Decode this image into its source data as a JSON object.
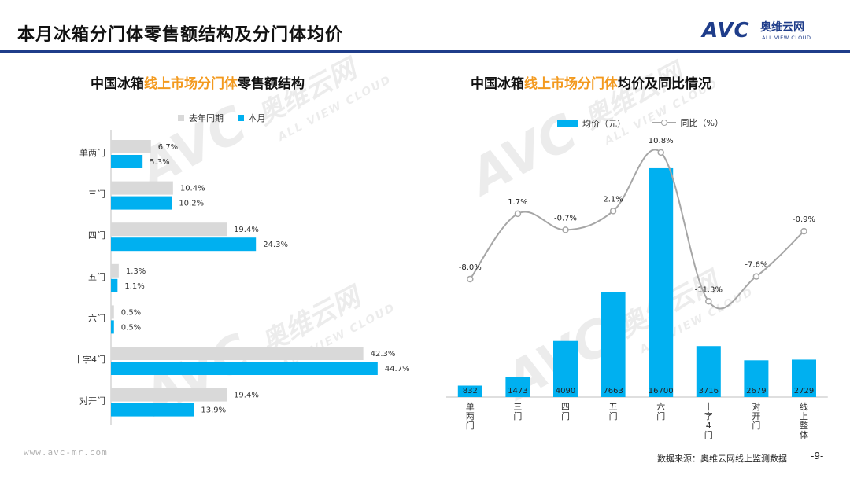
{
  "page": {
    "title": "本月冰箱分门体零售额结构及分门体均价",
    "logo": {
      "mark": "AVC",
      "name_cn": "奥维云网",
      "name_en": "ALL VIEW CLOUD"
    },
    "footer": {
      "url": "www.avc-mr.com",
      "source": "数据来源：奥维云网线上监测数据",
      "page_number": "-9-"
    }
  },
  "watermark": {
    "mark": "AVC",
    "name_cn": "奥维云网",
    "name_en": "ALL VIEW CLOUD"
  },
  "chart_data": [
    {
      "type": "bar",
      "orientation": "horizontal",
      "title_parts": [
        "中国冰箱",
        "线上市场分门体",
        "零售额结构"
      ],
      "title_highlight_color": "#f39a1f",
      "categories": [
        "单两门",
        "三门",
        "四门",
        "五门",
        "六门",
        "十字4门",
        "对开门"
      ],
      "series": [
        {
          "name": "去年同期",
          "color": "#d9d9d9",
          "values": [
            6.7,
            10.4,
            19.4,
            1.3,
            0.5,
            42.3,
            19.4
          ],
          "labels": [
            "6.7%",
            "10.4%",
            "19.4%",
            "1.3%",
            "0.5%",
            "42.3%",
            "19.4%"
          ]
        },
        {
          "name": "本月",
          "color": "#00b0f0",
          "values": [
            5.3,
            10.2,
            24.3,
            1.1,
            0.5,
            44.7,
            13.9
          ],
          "labels": [
            "5.3%",
            "10.2%",
            "24.3%",
            "1.1%",
            "0.5%",
            "44.7%",
            "13.9%"
          ]
        }
      ],
      "xlim": [
        0,
        50
      ],
      "grid": false,
      "legend_position": "top"
    },
    {
      "type": "bar",
      "combo": "bar+line",
      "title_parts": [
        "中国冰箱",
        "线上市场分门体",
        "均价及同比情况"
      ],
      "title_highlight_color": "#f39a1f",
      "categories": [
        "单两门",
        "三门",
        "四门",
        "五门",
        "六门",
        "十字4门",
        "对开门",
        "线上整体"
      ],
      "bar_series": {
        "name": "均价（元）",
        "color": "#00b0f0",
        "values": [
          832,
          1473,
          4090,
          7663,
          16700,
          3716,
          2679,
          2729
        ],
        "labels": [
          "832",
          "1473",
          "4090",
          "7663",
          "16700",
          "3716",
          "2679",
          "2729"
        ],
        "ylim": [
          0,
          17500
        ]
      },
      "line_series": {
        "name": "同比（%）",
        "color": "#a6a6a6",
        "values": [
          -8.0,
          1.7,
          -0.7,
          2.1,
          10.8,
          -11.3,
          -7.6,
          -0.9
        ],
        "labels": [
          "-8.0%",
          "1.7%",
          "-0.7%",
          "2.1%",
          "10.8%",
          "-11.3%",
          "-7.6%",
          "-0.9%"
        ],
        "ylim": [
          -15,
          13
        ]
      },
      "grid": false,
      "legend_position": "top"
    }
  ]
}
